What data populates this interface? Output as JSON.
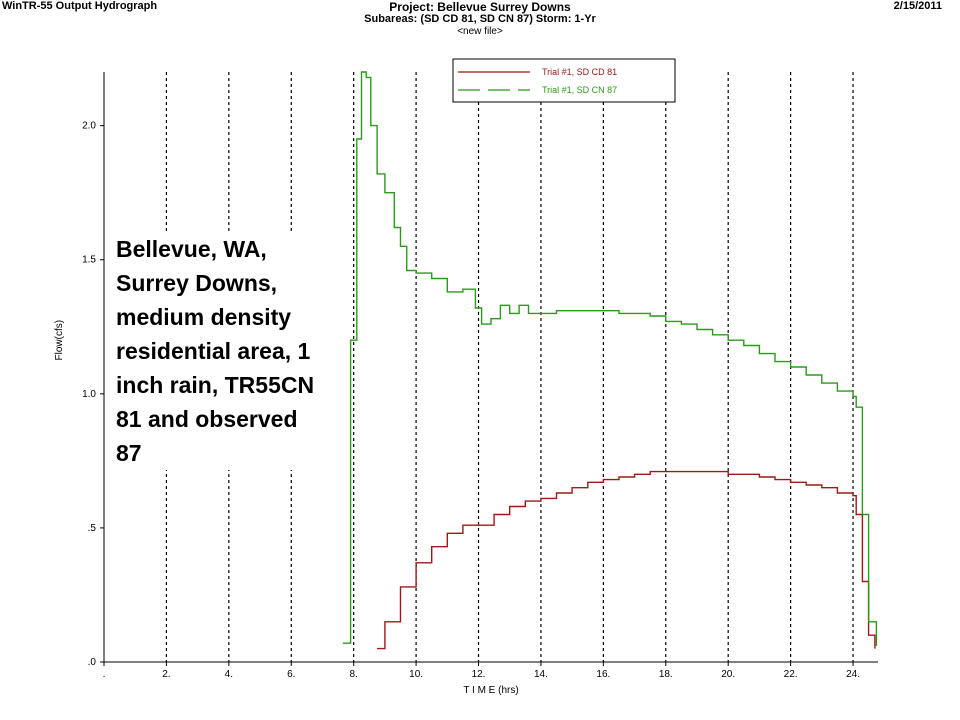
{
  "header": {
    "app_title": "WinTR-55 Output Hydrograph",
    "project_title": "Project: Bellevue Surrey Downs",
    "subareas": "Subareas: (SD CD 81, SD CN 87)  Storm: 1-Yr",
    "file": "<new file>",
    "date": "2/15/2011"
  },
  "overlay_text": "Bellevue, WA, Surrey Downs, medium density residential area, 1 inch rain, TR55CN 81 and observed 87",
  "chart_data": {
    "type": "line",
    "xlabel": "T I M E (hrs)",
    "ylabel": "Flow(cfs)",
    "xlim": [
      0,
      24.8
    ],
    "ylim": [
      0,
      2.2
    ],
    "x_ticks": [
      ".",
      "2.",
      "4.",
      "6.",
      "8.",
      "10.",
      "12.",
      "14.",
      "16.",
      "18.",
      "20.",
      "22.",
      "24."
    ],
    "y_ticks": [
      ".0",
      ".5",
      "1.0",
      "1.5",
      "2.0"
    ],
    "grid": "vertical dotted",
    "legend_position": "top-center",
    "series": [
      {
        "name": "Trial #1, SD CD 81",
        "color": "#a01818",
        "x": [
          8.75,
          9.0,
          9.5,
          10.0,
          10.5,
          11.0,
          11.5,
          12.0,
          12.5,
          13.0,
          13.5,
          14.0,
          14.5,
          15.0,
          15.5,
          16.0,
          16.5,
          17.0,
          17.5,
          18.0,
          18.5,
          19.0,
          19.5,
          20.0,
          20.5,
          21.0,
          21.5,
          22.0,
          22.5,
          23.0,
          23.5,
          24.0,
          24.1,
          24.3,
          24.5,
          24.7
        ],
        "y": [
          0.05,
          0.15,
          0.28,
          0.37,
          0.43,
          0.48,
          0.51,
          0.51,
          0.55,
          0.58,
          0.6,
          0.61,
          0.63,
          0.65,
          0.67,
          0.68,
          0.69,
          0.7,
          0.71,
          0.71,
          0.71,
          0.71,
          0.71,
          0.7,
          0.7,
          0.69,
          0.68,
          0.67,
          0.66,
          0.65,
          0.63,
          0.62,
          0.55,
          0.3,
          0.1,
          0.05
        ]
      },
      {
        "name": "Trial #1, SD CN 87",
        "color": "#2c9a1c",
        "x": [
          7.65,
          7.9,
          8.1,
          8.25,
          8.4,
          8.55,
          8.75,
          9.0,
          9.3,
          9.5,
          9.7,
          10.0,
          10.5,
          11.0,
          11.5,
          11.9,
          12.1,
          12.4,
          12.7,
          13.0,
          13.3,
          13.6,
          14.0,
          14.5,
          15.0,
          15.5,
          16.0,
          16.5,
          17.0,
          17.5,
          18.0,
          18.5,
          19.0,
          19.5,
          20.0,
          20.5,
          21.0,
          21.5,
          22.0,
          22.5,
          23.0,
          23.5,
          24.0,
          24.1,
          24.3,
          24.5,
          24.75
        ],
        "y": [
          0.07,
          1.2,
          1.95,
          2.2,
          2.18,
          2.0,
          1.82,
          1.75,
          1.62,
          1.55,
          1.46,
          1.45,
          1.43,
          1.38,
          1.39,
          1.32,
          1.26,
          1.28,
          1.33,
          1.3,
          1.33,
          1.3,
          1.3,
          1.31,
          1.31,
          1.31,
          1.31,
          1.3,
          1.3,
          1.29,
          1.27,
          1.26,
          1.24,
          1.22,
          1.2,
          1.18,
          1.15,
          1.12,
          1.1,
          1.07,
          1.04,
          1.01,
          0.99,
          0.95,
          0.55,
          0.15,
          0.06
        ]
      }
    ]
  }
}
